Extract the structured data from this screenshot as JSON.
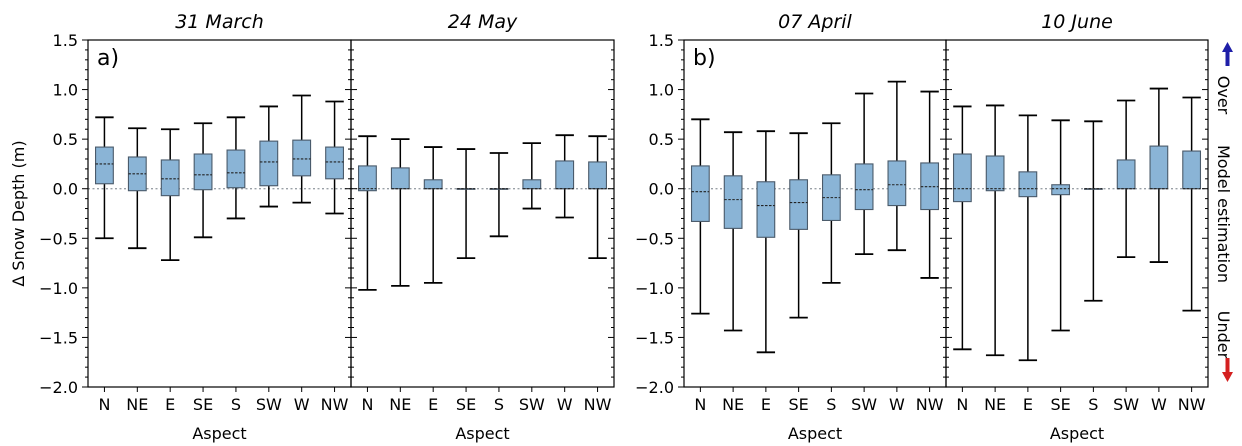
{
  "chart_data": [
    {
      "type": "box",
      "panel_label": "a)",
      "title": "31 March",
      "xlabel": "Aspect",
      "ylabel": "Δ Snow Depth (m)",
      "ylim": [
        -2.0,
        1.5
      ],
      "yticks": [
        "1.5",
        "1.0",
        "0.5",
        "0.0",
        "−0.5",
        "−1.0",
        "−1.5",
        "−2.0"
      ],
      "categories": [
        "N",
        "NE",
        "E",
        "SE",
        "S",
        "SW",
        "W",
        "NW"
      ],
      "boxes": [
        {
          "whisker_low": -0.5,
          "q1": 0.05,
          "median": 0.25,
          "q3": 0.42,
          "whisker_high": 0.72
        },
        {
          "whisker_low": -0.6,
          "q1": -0.02,
          "median": 0.15,
          "q3": 0.32,
          "whisker_high": 0.61
        },
        {
          "whisker_low": -0.72,
          "q1": -0.07,
          "median": 0.1,
          "q3": 0.29,
          "whisker_high": 0.6
        },
        {
          "whisker_low": -0.49,
          "q1": -0.01,
          "median": 0.14,
          "q3": 0.35,
          "whisker_high": 0.66
        },
        {
          "whisker_low": -0.3,
          "q1": 0.01,
          "median": 0.16,
          "q3": 0.39,
          "whisker_high": 0.72
        },
        {
          "whisker_low": -0.18,
          "q1": 0.03,
          "median": 0.27,
          "q3": 0.48,
          "whisker_high": 0.83
        },
        {
          "whisker_low": -0.14,
          "q1": 0.13,
          "median": 0.3,
          "q3": 0.49,
          "whisker_high": 0.94
        },
        {
          "whisker_low": -0.25,
          "q1": 0.1,
          "median": 0.27,
          "q3": 0.42,
          "whisker_high": 0.88
        }
      ]
    },
    {
      "type": "box",
      "title": "24 May",
      "xlabel": "Aspect",
      "ylim": [
        -2.0,
        1.5
      ],
      "categories": [
        "N",
        "NE",
        "E",
        "SE",
        "S",
        "SW",
        "W",
        "NW"
      ],
      "boxes": [
        {
          "whisker_low": -1.02,
          "q1": -0.02,
          "median": 0.0,
          "q3": 0.23,
          "whisker_high": 0.53
        },
        {
          "whisker_low": -0.98,
          "q1": 0.0,
          "median": 0.0,
          "q3": 0.21,
          "whisker_high": 0.5
        },
        {
          "whisker_low": -0.95,
          "q1": 0.0,
          "median": 0.0,
          "q3": 0.09,
          "whisker_high": 0.42
        },
        {
          "whisker_low": -0.7,
          "q1": 0.0,
          "median": 0.0,
          "q3": 0.0,
          "whisker_high": 0.4
        },
        {
          "whisker_low": -0.48,
          "q1": 0.0,
          "median": 0.0,
          "q3": 0.0,
          "whisker_high": 0.36
        },
        {
          "whisker_low": -0.2,
          "q1": 0.0,
          "median": 0.0,
          "q3": 0.09,
          "whisker_high": 0.46
        },
        {
          "whisker_low": -0.29,
          "q1": 0.0,
          "median": 0.0,
          "q3": 0.28,
          "whisker_high": 0.54
        },
        {
          "whisker_low": -0.7,
          "q1": 0.0,
          "median": 0.0,
          "q3": 0.27,
          "whisker_high": 0.53
        }
      ]
    },
    {
      "type": "box",
      "panel_label": "b)",
      "title": "07 April",
      "xlabel": "Aspect",
      "ylim": [
        -2.0,
        1.5
      ],
      "yticks": [
        "1.5",
        "1.0",
        "0.5",
        "0.0",
        "−0.5",
        "−1.0",
        "−1.5",
        "−2.0"
      ],
      "categories": [
        "N",
        "NE",
        "E",
        "SE",
        "S",
        "SW",
        "W",
        "NW"
      ],
      "boxes": [
        {
          "whisker_low": -1.26,
          "q1": -0.33,
          "median": -0.03,
          "q3": 0.23,
          "whisker_high": 0.7
        },
        {
          "whisker_low": -1.43,
          "q1": -0.4,
          "median": -0.11,
          "q3": 0.13,
          "whisker_high": 0.57
        },
        {
          "whisker_low": -1.65,
          "q1": -0.49,
          "median": -0.17,
          "q3": 0.07,
          "whisker_high": 0.58
        },
        {
          "whisker_low": -1.3,
          "q1": -0.41,
          "median": -0.14,
          "q3": 0.09,
          "whisker_high": 0.56
        },
        {
          "whisker_low": -0.95,
          "q1": -0.32,
          "median": -0.09,
          "q3": 0.14,
          "whisker_high": 0.66
        },
        {
          "whisker_low": -0.66,
          "q1": -0.21,
          "median": -0.01,
          "q3": 0.25,
          "whisker_high": 0.96
        },
        {
          "whisker_low": -0.62,
          "q1": -0.17,
          "median": 0.04,
          "q3": 0.28,
          "whisker_high": 1.08
        },
        {
          "whisker_low": -0.9,
          "q1": -0.21,
          "median": 0.02,
          "q3": 0.26,
          "whisker_high": 0.98
        }
      ]
    },
    {
      "type": "box",
      "title": "10 June",
      "xlabel": "Aspect",
      "ylim": [
        -2.0,
        1.5
      ],
      "categories": [
        "N",
        "NE",
        "E",
        "SE",
        "S",
        "SW",
        "W",
        "NW"
      ],
      "boxes": [
        {
          "whisker_low": -1.62,
          "q1": -0.13,
          "median": 0.0,
          "q3": 0.35,
          "whisker_high": 0.83
        },
        {
          "whisker_low": -1.68,
          "q1": -0.02,
          "median": 0.0,
          "q3": 0.33,
          "whisker_high": 0.84
        },
        {
          "whisker_low": -1.73,
          "q1": -0.08,
          "median": 0.0,
          "q3": 0.17,
          "whisker_high": 0.74
        },
        {
          "whisker_low": -1.43,
          "q1": -0.06,
          "median": 0.0,
          "q3": 0.04,
          "whisker_high": 0.69
        },
        {
          "whisker_low": -1.13,
          "q1": 0.0,
          "median": 0.0,
          "q3": 0.0,
          "whisker_high": 0.68
        },
        {
          "whisker_low": -0.69,
          "q1": 0.0,
          "median": 0.0,
          "q3": 0.29,
          "whisker_high": 0.89
        },
        {
          "whisker_low": -0.74,
          "q1": 0.0,
          "median": 0.0,
          "q3": 0.43,
          "whisker_high": 1.01
        },
        {
          "whisker_low": -1.23,
          "q1": 0.0,
          "median": 0.0,
          "q3": 0.38,
          "whisker_high": 0.92
        }
      ]
    }
  ],
  "side_legend": {
    "labels": [
      "Over",
      "Model estimation",
      "Under"
    ],
    "up_arrow_color": "#1f1fa8",
    "down_arrow_color": "#d42020"
  },
  "colors": {
    "box_fill": "#8ab4d6",
    "box_edge": "#4a5a6a",
    "zero_line": "#9aa0a6"
  }
}
